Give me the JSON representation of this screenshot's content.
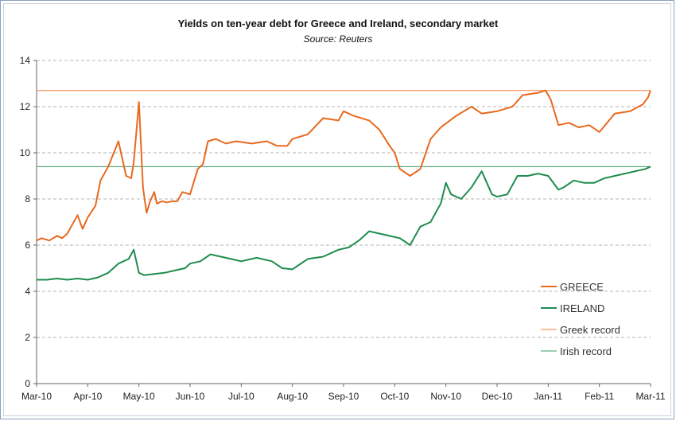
{
  "chart_data": {
    "type": "line",
    "title": "Yields on ten-year debt for Greece and Ireland, secondary market",
    "subtitle": "Source: Reuters",
    "xlabel": "",
    "ylabel": "",
    "ylim": [
      0,
      14
    ],
    "y_ticks": [
      0,
      2,
      4,
      6,
      8,
      10,
      12,
      14
    ],
    "x_ticks": [
      "Mar-10",
      "Apr-10",
      "May-10",
      "Jun-10",
      "Jul-10",
      "Aug-10",
      "Sep-10",
      "Oct-10",
      "Nov-10",
      "Dec-10",
      "Jan-11",
      "Feb-11",
      "Mar-11"
    ],
    "x_range": [
      0,
      12
    ],
    "grid": "horizontal dashed",
    "legend_position": "bottom-right",
    "colors": {
      "greece": "#e8691e",
      "ireland": "#1f8c4e",
      "greek_record": "#f08040",
      "irish_record": "#3a9a62"
    },
    "series": [
      {
        "name": "GREECE",
        "x": [
          0,
          0.1,
          0.25,
          0.4,
          0.5,
          0.6,
          0.8,
          0.9,
          1.0,
          1.15,
          1.25,
          1.4,
          1.6,
          1.75,
          1.85,
          1.9,
          2.0,
          2.08,
          2.15,
          2.22,
          2.3,
          2.35,
          2.45,
          2.55,
          2.65,
          2.75,
          2.85,
          3.0,
          3.15,
          3.25,
          3.35,
          3.5,
          3.7,
          3.9,
          4.2,
          4.5,
          4.7,
          4.9,
          5.0,
          5.3,
          5.6,
          5.9,
          6.0,
          6.2,
          6.5,
          6.7,
          6.9,
          7.0,
          7.1,
          7.3,
          7.5,
          7.7,
          7.9,
          8.2,
          8.5,
          8.7,
          9.0,
          9.3,
          9.5,
          9.8,
          9.95,
          10.05,
          10.2,
          10.4,
          10.6,
          10.8,
          11.0,
          11.3,
          11.6,
          11.85,
          11.95,
          12.0
        ],
        "values": [
          6.2,
          6.3,
          6.2,
          6.4,
          6.3,
          6.5,
          7.3,
          6.7,
          7.2,
          7.7,
          8.8,
          9.4,
          10.5,
          9.0,
          8.9,
          9.6,
          12.2,
          8.5,
          7.4,
          7.9,
          8.3,
          7.8,
          7.9,
          7.85,
          7.9,
          7.9,
          8.3,
          8.2,
          9.3,
          9.5,
          10.5,
          10.6,
          10.4,
          10.5,
          10.4,
          10.5,
          10.3,
          10.3,
          10.6,
          10.8,
          11.5,
          11.4,
          11.8,
          11.6,
          11.4,
          11.0,
          10.3,
          10.0,
          9.3,
          9.0,
          9.3,
          10.6,
          11.1,
          11.6,
          12.0,
          11.7,
          11.8,
          12.0,
          12.5,
          12.6,
          12.7,
          12.3,
          11.2,
          11.3,
          11.1,
          11.2,
          10.9,
          11.7,
          11.8,
          12.1,
          12.4,
          12.7
        ]
      },
      {
        "name": "IRELAND",
        "x": [
          0,
          0.2,
          0.4,
          0.6,
          0.8,
          1.0,
          1.2,
          1.4,
          1.6,
          1.8,
          1.9,
          2.0,
          2.1,
          2.3,
          2.5,
          2.7,
          2.9,
          3.0,
          3.2,
          3.4,
          3.6,
          3.8,
          4.0,
          4.3,
          4.6,
          4.8,
          5.0,
          5.3,
          5.6,
          5.9,
          6.1,
          6.3,
          6.5,
          6.7,
          6.9,
          7.1,
          7.3,
          7.5,
          7.7,
          7.9,
          8.0,
          8.1,
          8.3,
          8.5,
          8.7,
          8.9,
          9.0,
          9.2,
          9.4,
          9.6,
          9.8,
          10.0,
          10.2,
          10.3,
          10.5,
          10.7,
          10.9,
          11.1,
          11.3,
          11.5,
          11.7,
          11.9,
          12.0
        ],
        "values": [
          4.5,
          4.5,
          4.55,
          4.5,
          4.55,
          4.5,
          4.6,
          4.8,
          5.2,
          5.4,
          5.8,
          4.8,
          4.7,
          4.75,
          4.8,
          4.9,
          5.0,
          5.2,
          5.3,
          5.6,
          5.5,
          5.4,
          5.3,
          5.45,
          5.3,
          5.0,
          4.95,
          5.4,
          5.5,
          5.8,
          5.9,
          6.2,
          6.6,
          6.5,
          6.4,
          6.3,
          6.0,
          6.8,
          7.0,
          7.8,
          8.7,
          8.2,
          8.0,
          8.5,
          9.2,
          8.2,
          8.1,
          8.2,
          9.0,
          9.0,
          9.1,
          9.0,
          8.4,
          8.5,
          8.8,
          8.7,
          8.7,
          8.9,
          9.0,
          9.1,
          9.2,
          9.3,
          9.4
        ]
      },
      {
        "name": "Greek record",
        "x": [
          0,
          12
        ],
        "values": [
          12.7,
          12.7
        ]
      },
      {
        "name": "Irish record",
        "x": [
          0,
          12
        ],
        "values": [
          9.4,
          9.4
        ]
      }
    ]
  }
}
